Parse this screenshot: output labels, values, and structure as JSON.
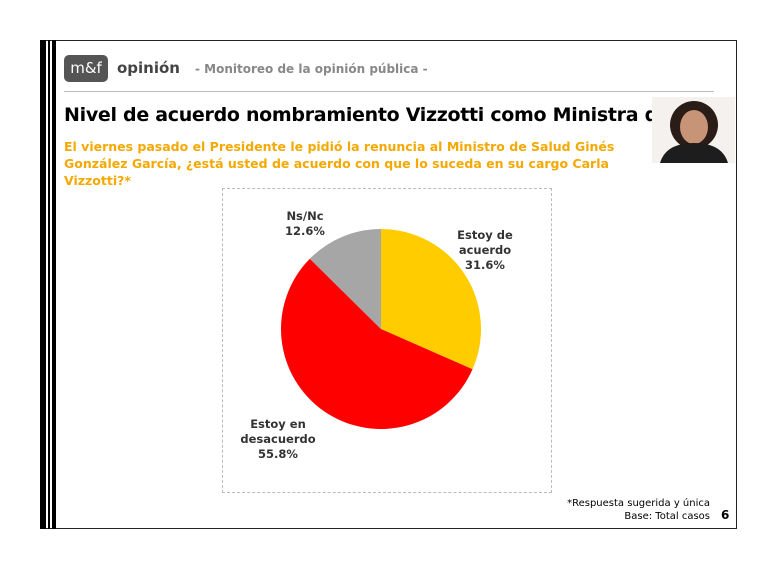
{
  "header": {
    "logo": "m&f",
    "brand": "opinión",
    "tagline": "- Monitoreo de la opinión pública -"
  },
  "title": "Nivel de acuerdo nombramiento Vizzotti como Ministra de Salud",
  "question": "El viernes pasado el Presidente le pidió la renuncia al Ministro de Salud Ginés González García, ¿está usted de acuerdo con que lo suceda en su cargo Carla Vizzotti?*",
  "chart_data": {
    "type": "pie",
    "categories": [
      "Estoy de acuerdo",
      "Estoy en desacuerdo",
      "Ns/Nc"
    ],
    "values": [
      31.6,
      55.8,
      12.6
    ],
    "value_labels": [
      "31.6%",
      "55.8%",
      "12.6%"
    ],
    "colors": [
      "#ffcc00",
      "#ff0000",
      "#a6a6a6"
    ]
  },
  "footnotes": [
    "*Respuesta sugerida y única",
    "Base: Total casos"
  ],
  "page_number": "6"
}
